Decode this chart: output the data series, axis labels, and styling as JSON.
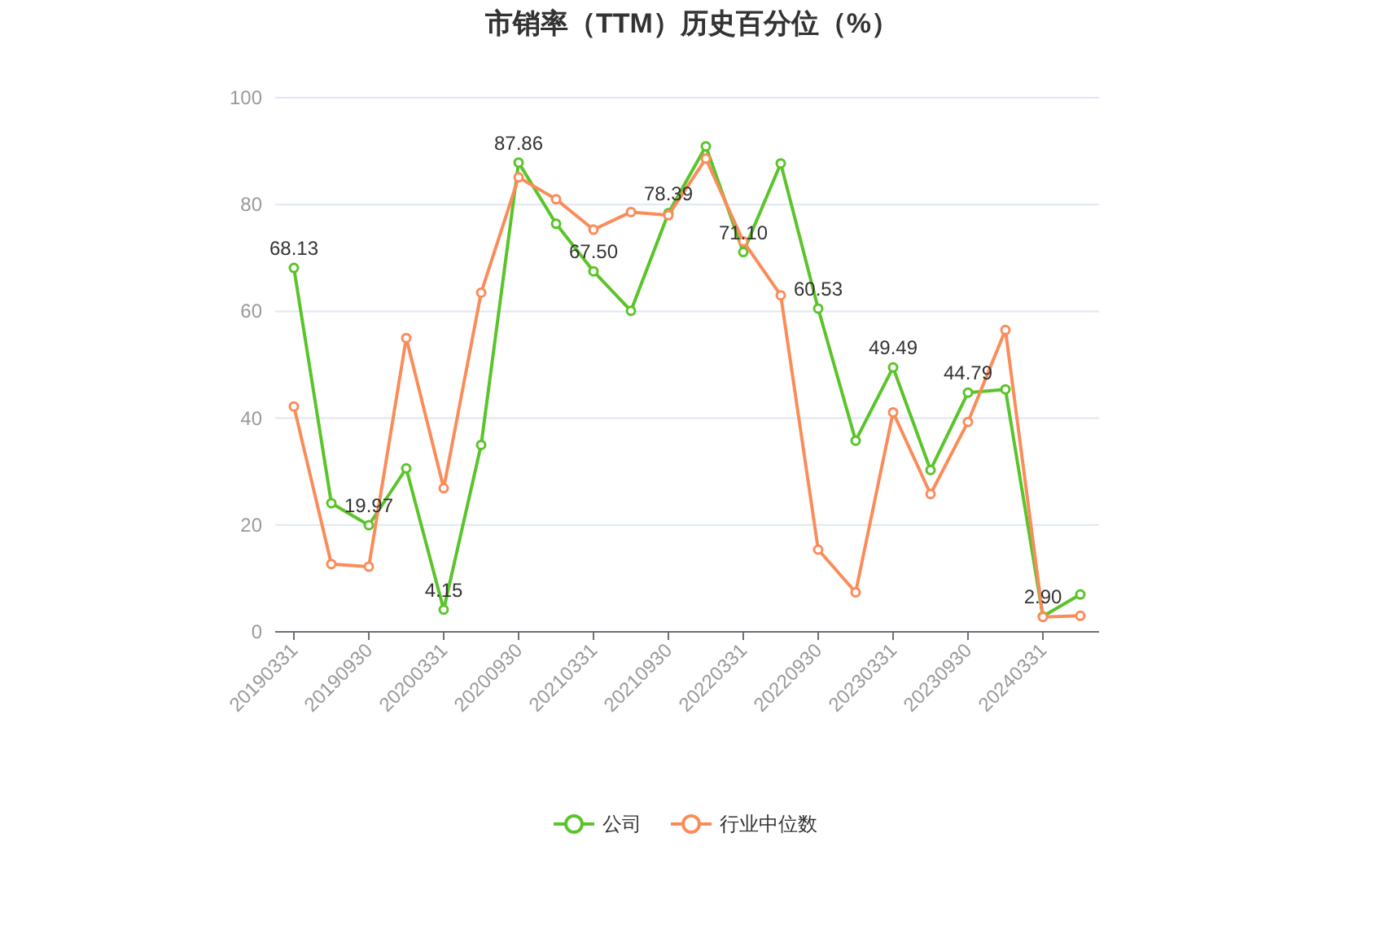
{
  "chart_data": {
    "type": "line",
    "title": "市销率（TTM）历史百分位（%）",
    "categories": [
      "20190331",
      null,
      "20190930",
      null,
      "20200331",
      null,
      "20200930",
      null,
      "20210331",
      null,
      "20210930",
      null,
      "20220331",
      null,
      "20220930",
      null,
      "20230331",
      null,
      "20230930",
      null,
      "20240331",
      null
    ],
    "series": [
      {
        "name": "公司",
        "color": "#5ac42a",
        "values": [
          68.13,
          24.1,
          19.97,
          30.6,
          4.15,
          35.0,
          87.86,
          76.4,
          67.5,
          60.1,
          78.39,
          90.9,
          71.1,
          87.7,
          60.53,
          35.8,
          49.49,
          30.3,
          44.79,
          45.4,
          2.9,
          7.0
        ],
        "value_labels": [
          "68.13",
          null,
          "19.97",
          null,
          "4.15",
          null,
          "87.86",
          null,
          "67.50",
          null,
          "78.39",
          null,
          "71.10",
          null,
          "60.53",
          null,
          "49.49",
          null,
          "44.79",
          null,
          "2.90",
          null
        ]
      },
      {
        "name": "行业中位数",
        "color": "#fa8c5a",
        "values": [
          42.2,
          12.7,
          12.2,
          55.0,
          26.9,
          63.5,
          85.1,
          81.0,
          75.3,
          78.6,
          78.0,
          88.6,
          73.1,
          63.0,
          15.4,
          7.4,
          41.1,
          25.8,
          39.3,
          56.5,
          2.8,
          3.0
        ]
      }
    ],
    "ylim": [
      0,
      100
    ],
    "yticks": [
      0,
      20,
      40,
      60,
      80,
      100
    ],
    "grid": "y",
    "marker": "circle",
    "legend": "bottom"
  }
}
